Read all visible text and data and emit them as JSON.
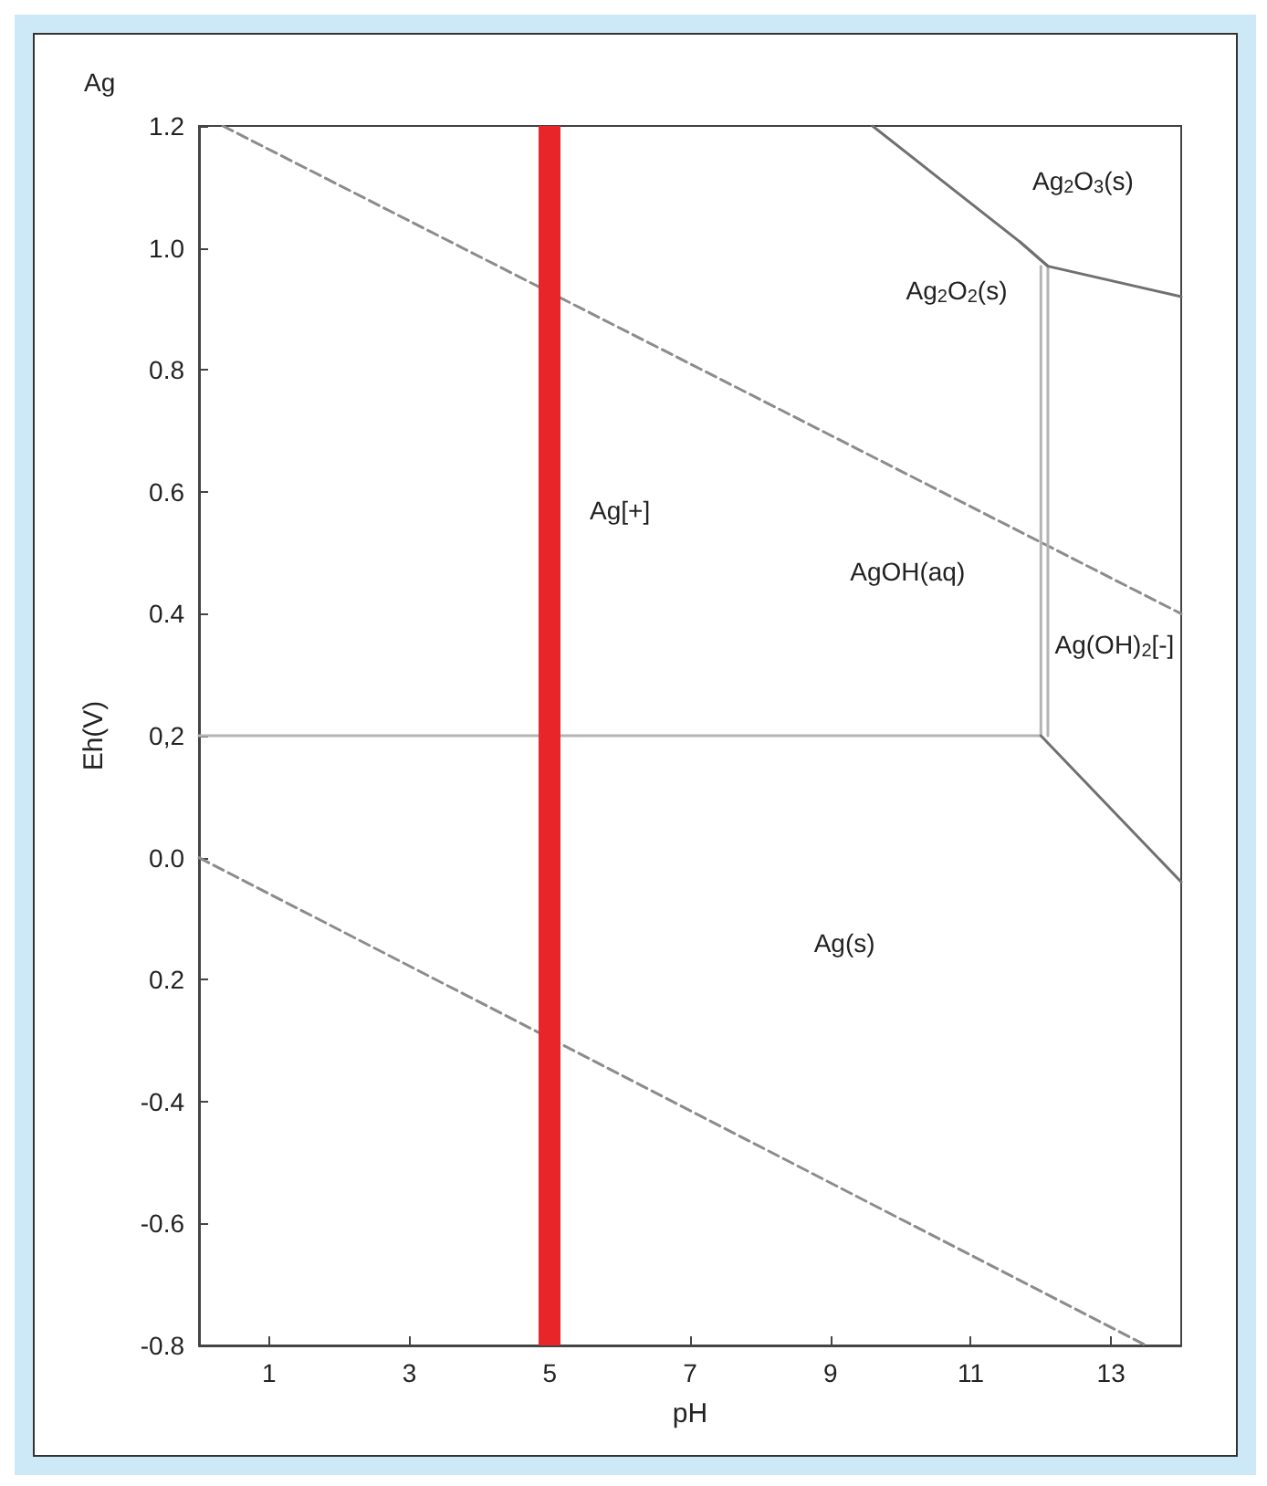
{
  "chart_data": {
    "type": "line",
    "title": "Ag",
    "xlabel": "pH",
    "ylabel": "Eh(V)",
    "xlim": [
      0,
      14
    ],
    "xticks": [
      1,
      3,
      5,
      7,
      9,
      11,
      13
    ],
    "ylim": [
      -0.8,
      1.2
    ],
    "yticks": [
      -0.8,
      -0.6,
      -0.4,
      {
        "value": -0.2,
        "label": "0.2"
      },
      {
        "value": 0,
        "label": "0.0"
      },
      {
        "value": 0.2,
        "label": "0,2"
      },
      0.4,
      0.6,
      0.8,
      {
        "value": 1,
        "label": "1.0"
      },
      1.2
    ],
    "grid": false,
    "marker": "none",
    "series": [
      {
        "color": "#8c8c8c",
        "line_style": "dashed",
        "x": [
          0.34,
          14
        ],
        "values": [
          1.2,
          0.4
        ]
      },
      {
        "color": "#8c8c8c",
        "line_style": "dashed",
        "x": [
          0,
          13.5
        ],
        "values": [
          0.0,
          -0.8
        ]
      },
      {
        "color": "#b4b4b4",
        "line_style": "solid",
        "x": [
          0,
          12
        ],
        "values": [
          0.2,
          0.2
        ]
      },
      {
        "color": "#b4b4b4",
        "line_style": "solid",
        "x": [
          12,
          12
        ],
        "values": [
          0.2,
          0.97
        ]
      },
      {
        "color": "#b4b4b4",
        "line_style": "solid",
        "x": [
          12.1,
          12.1
        ],
        "values": [
          0.2,
          0.97
        ]
      },
      {
        "color": "#707070",
        "line_style": "solid",
        "x": [
          12,
          14
        ],
        "values": [
          0.2,
          -0.04
        ]
      },
      {
        "color": "#707070",
        "line_style": "solid",
        "x": [
          9.6,
          11.7,
          12.1,
          14
        ],
        "values": [
          1.2,
          1.01,
          0.97,
          0.92
        ]
      },
      {
        "color": "#707070",
        "line_style": "solid",
        "x": [
          11.7,
          12.1
        ],
        "values": [
          1.01,
          0.97
        ]
      }
    ],
    "ref_lines": [
      {
        "axis": "x",
        "value": 5,
        "label": null,
        "color": "#e8262a"
      }
    ],
    "annotations": [
      "Ag$_{2}$O$_{3}$(s)",
      "Ag$_{2}$O$_{2}$(s)",
      "Ag[+]",
      "AgOH(aq)",
      "Ag(OH)$_{2}$[-]",
      "Ag(s)"
    ]
  }
}
